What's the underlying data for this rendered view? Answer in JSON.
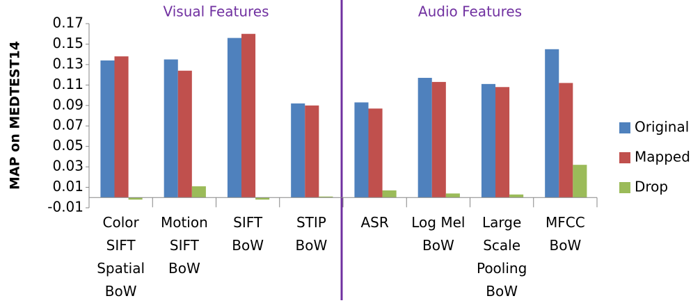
{
  "chart_data": {
    "type": "bar",
    "y_label": "MAP on MEDTEST14",
    "annotations": [
      "Visual Features",
      "Audio Features"
    ],
    "categories": [
      "Color\nSIFT\nSpatial\nBoW",
      "Motion\nSIFT\nBoW",
      "SIFT\nBoW",
      "STIP\nBoW",
      "ASR",
      "Log Mel\nBoW",
      "Large\nScale\nPooling\nBoW",
      "MFCC\nBoW"
    ],
    "series": [
      {
        "name": "Original",
        "color": "#4f81bd",
        "values": [
          0.134,
          0.135,
          0.156,
          0.092,
          0.093,
          0.117,
          0.111,
          0.145
        ]
      },
      {
        "name": "Mapped",
        "color": "#c0504d",
        "values": [
          0.138,
          0.124,
          0.16,
          0.09,
          0.087,
          0.113,
          0.108,
          0.112
        ]
      },
      {
        "name": "Drop",
        "color": "#9bbb59",
        "values": [
          -0.002,
          0.011,
          -0.002,
          0.001,
          0.007,
          0.004,
          0.003,
          0.032
        ]
      }
    ],
    "ylim": [
      -0.01,
      0.17
    ],
    "yticks": [
      -0.01,
      0.01,
      0.03,
      0.05,
      0.07,
      0.09,
      0.11,
      0.13,
      0.15,
      0.17
    ],
    "grid": false,
    "legend": "right"
  }
}
